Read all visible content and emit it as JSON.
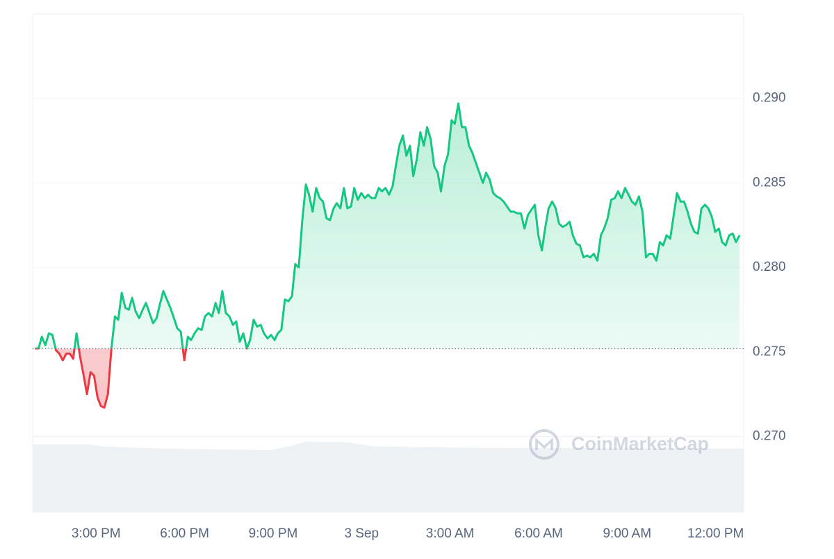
{
  "chart_data": {
    "type": "line",
    "color": "#16c784",
    "down_color": "#ea3943",
    "watermark": "CoinMarketCap",
    "grid": true,
    "xlim": [
      12.85,
      36.95
    ],
    "ylim": [
      0.2655,
      0.295
    ],
    "xticks": [
      {
        "value": 15,
        "label": "3:00 PM"
      },
      {
        "value": 18,
        "label": "6:00 PM"
      },
      {
        "value": 21,
        "label": "9:00 PM"
      },
      {
        "value": 24,
        "label": "3 Sep"
      },
      {
        "value": 27,
        "label": "3:00 AM"
      },
      {
        "value": 30,
        "label": "6:00 AM"
      },
      {
        "value": 33,
        "label": "9:00 AM"
      },
      {
        "value": 36,
        "label": "12:00 PM"
      }
    ],
    "yticks": [
      {
        "value": 0.27,
        "label": "0.270"
      },
      {
        "value": 0.275,
        "label": "0.275"
      },
      {
        "value": 0.28,
        "label": "0.280"
      },
      {
        "value": 0.285,
        "label": "0.285"
      },
      {
        "value": 0.29,
        "label": "0.290"
      }
    ],
    "x": [
      12.93,
      13.05,
      13.16,
      13.28,
      13.4,
      13.52,
      13.64,
      13.75,
      13.87,
      13.99,
      14.11,
      14.22,
      14.34,
      14.46,
      14.58,
      14.69,
      14.81,
      14.93,
      15.05,
      15.16,
      15.28,
      15.4,
      15.52,
      15.64,
      15.75,
      15.87,
      15.99,
      16.11,
      16.22,
      16.34,
      16.46,
      16.58,
      16.69,
      16.81,
      16.93,
      17.05,
      17.16,
      17.28,
      17.4,
      17.52,
      17.64,
      17.75,
      17.87,
      17.99,
      18.11,
      18.22,
      18.34,
      18.46,
      18.58,
      18.69,
      18.81,
      18.93,
      19.05,
      19.16,
      19.28,
      19.4,
      19.52,
      19.64,
      19.75,
      19.87,
      19.99,
      20.11,
      20.22,
      20.34,
      20.46,
      20.58,
      20.69,
      20.81,
      20.93,
      21.05,
      21.16,
      21.28,
      21.4,
      21.52,
      21.64,
      21.75,
      21.87,
      21.99,
      22.11,
      22.22,
      22.34,
      22.46,
      22.58,
      22.69,
      22.81,
      22.93,
      23.05,
      23.16,
      23.28,
      23.4,
      23.52,
      23.64,
      23.75,
      23.87,
      23.99,
      24.11,
      24.22,
      24.34,
      24.46,
      24.58,
      24.69,
      24.81,
      24.93,
      25.05,
      25.16,
      25.28,
      25.4,
      25.52,
      25.64,
      25.75,
      25.87,
      25.99,
      26.11,
      26.22,
      26.34,
      26.46,
      26.58,
      26.69,
      26.81,
      26.93,
      27.05,
      27.16,
      27.28,
      27.4,
      27.52,
      27.64,
      27.75,
      27.87,
      27.99,
      28.11,
      28.22,
      28.34,
      28.46,
      28.58,
      28.69,
      28.81,
      28.93,
      29.05,
      29.16,
      29.28,
      29.4,
      29.52,
      29.64,
      29.75,
      29.87,
      29.99,
      30.11,
      30.22,
      30.34,
      30.46,
      30.58,
      30.69,
      30.81,
      30.93,
      31.05,
      31.16,
      31.28,
      31.4,
      31.52,
      31.64,
      31.75,
      31.87,
      31.99,
      32.11,
      32.22,
      32.34,
      32.46,
      32.58,
      32.69,
      32.81,
      32.93,
      33.05,
      33.16,
      33.28,
      33.4,
      33.52,
      33.64,
      33.75,
      33.87,
      33.99,
      34.11,
      34.22,
      34.34,
      34.46,
      34.58,
      34.69,
      34.81,
      34.93,
      35.05,
      35.16,
      35.28,
      35.4,
      35.52,
      35.64,
      35.75,
      35.87,
      35.99,
      36.11,
      36.22,
      36.34,
      36.46,
      36.58,
      36.69,
      36.81
    ],
    "values": [
      0.2752,
      0.2752,
      0.2759,
      0.2754,
      0.2761,
      0.276,
      0.2751,
      0.2749,
      0.2745,
      0.2749,
      0.2749,
      0.2746,
      0.2761,
      0.2747,
      0.2736,
      0.2725,
      0.2738,
      0.2736,
      0.2723,
      0.2718,
      0.2717,
      0.2725,
      0.2752,
      0.2771,
      0.2769,
      0.2785,
      0.2776,
      0.2775,
      0.2782,
      0.2774,
      0.277,
      0.2775,
      0.2779,
      0.2773,
      0.2767,
      0.277,
      0.2778,
      0.2786,
      0.2781,
      0.2776,
      0.277,
      0.2764,
      0.2762,
      0.2745,
      0.2759,
      0.2757,
      0.2761,
      0.2764,
      0.2763,
      0.2771,
      0.2773,
      0.2771,
      0.2779,
      0.2773,
      0.2786,
      0.2773,
      0.2771,
      0.2766,
      0.2768,
      0.2756,
      0.2761,
      0.2752,
      0.2757,
      0.2769,
      0.2765,
      0.2766,
      0.2761,
      0.2758,
      0.276,
      0.2757,
      0.2761,
      0.2763,
      0.2781,
      0.278,
      0.2783,
      0.2802,
      0.28,
      0.2828,
      0.2849,
      0.2843,
      0.2833,
      0.2847,
      0.2841,
      0.2839,
      0.2829,
      0.2828,
      0.2835,
      0.2838,
      0.2835,
      0.2847,
      0.2835,
      0.2836,
      0.2847,
      0.284,
      0.2844,
      0.2841,
      0.2843,
      0.2841,
      0.2841,
      0.2847,
      0.2845,
      0.2847,
      0.2843,
      0.2848,
      0.286,
      0.2872,
      0.2878,
      0.2866,
      0.2872,
      0.2854,
      0.2864,
      0.288,
      0.2872,
      0.2883,
      0.2876,
      0.286,
      0.2856,
      0.2845,
      0.286,
      0.2867,
      0.2887,
      0.2885,
      0.2897,
      0.2883,
      0.2883,
      0.2872,
      0.2868,
      0.2862,
      0.2856,
      0.285,
      0.2856,
      0.2852,
      0.2844,
      0.2842,
      0.2841,
      0.2839,
      0.2836,
      0.2833,
      0.2833,
      0.2832,
      0.2832,
      0.2823,
      0.2831,
      0.2834,
      0.2837,
      0.2819,
      0.281,
      0.2823,
      0.2835,
      0.2839,
      0.2835,
      0.2826,
      0.2824,
      0.2825,
      0.2827,
      0.2819,
      0.2814,
      0.2813,
      0.2806,
      0.2807,
      0.2806,
      0.2808,
      0.2804,
      0.2819,
      0.2823,
      0.2829,
      0.284,
      0.2841,
      0.2845,
      0.2841,
      0.2847,
      0.2843,
      0.2839,
      0.2837,
      0.2842,
      0.2833,
      0.2806,
      0.2808,
      0.2808,
      0.2804,
      0.2815,
      0.2813,
      0.2819,
      0.2817,
      0.2831,
      0.2844,
      0.2839,
      0.2839,
      0.2833,
      0.2826,
      0.2821,
      0.282,
      0.2835,
      0.2837,
      0.2835,
      0.283,
      0.2821,
      0.2823,
      0.2815,
      0.2813,
      0.2819,
      0.282,
      0.2815,
      0.2819
    ]
  }
}
